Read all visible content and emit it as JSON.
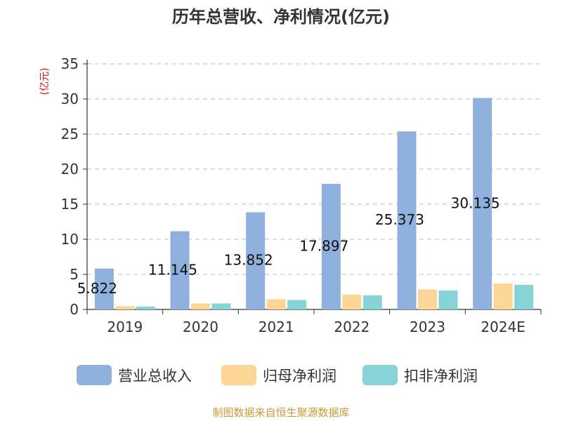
{
  "chart_data": {
    "type": "bar",
    "title": "历年总营收、净利情况(亿元)",
    "ylabel": "(亿元)",
    "categories": [
      "2019",
      "2020",
      "2021",
      "2022",
      "2023",
      "2024E"
    ],
    "ylim": [
      0,
      35
    ],
    "yticks": [
      0,
      5,
      10,
      15,
      20,
      25,
      30,
      35
    ],
    "grid": true,
    "legend_position": "bottom",
    "series": [
      {
        "name": "营业总收入",
        "color": "#8fb0dc",
        "values": [
          5.822,
          11.145,
          13.852,
          17.897,
          25.373,
          30.135
        ],
        "labels": [
          "5.822",
          "11.145",
          "13.852",
          "17.897",
          "25.373",
          "30.135"
        ]
      },
      {
        "name": "归母净利润",
        "color": "#fdd595",
        "values": [
          0.45,
          0.85,
          1.45,
          2.1,
          2.85,
          3.7
        ]
      },
      {
        "name": "扣非净利润",
        "color": "#86d4d8",
        "values": [
          0.4,
          0.85,
          1.35,
          2.0,
          2.7,
          3.5
        ]
      }
    ],
    "source": "制图数据来自恒生聚源数据库"
  }
}
